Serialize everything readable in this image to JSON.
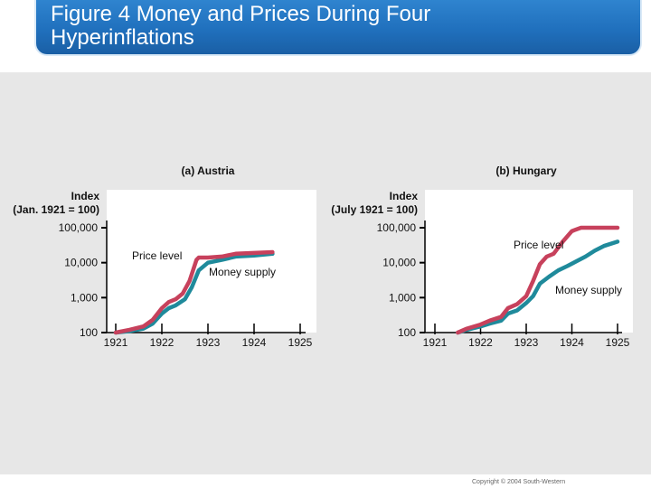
{
  "slide": {
    "title": "Figure 4 Money and Prices During Four Hyperinflations",
    "copyright": "Copyright © 2004 South-Western",
    "colors": {
      "price_level": "#c7415c",
      "money_supply": "#1f8a9b",
      "title_bg": "#2a7bc8"
    }
  },
  "chart_data": [
    {
      "type": "line",
      "panel_label": "(a) Austria",
      "ylabel": "Index\n(Jan. 1921 = 100)",
      "y_scale": "log",
      "ylim": [
        100,
        100000
      ],
      "y_ticks": [
        100,
        1000,
        10000,
        100000
      ],
      "y_tick_labels": [
        "100",
        "1,000",
        "10,000",
        "100,000"
      ],
      "x_ticks": [
        1921,
        1922,
        1923,
        1924,
        1925
      ],
      "x_tick_labels": [
        "1921",
        "1922",
        "1923",
        "1924",
        "1925"
      ],
      "xlim": [
        1921,
        1925
      ],
      "series": [
        {
          "name": "Price level",
          "color": "#c7415c",
          "x": [
            1921.0,
            1921.3,
            1921.6,
            1921.8,
            1922.0,
            1922.15,
            1922.3,
            1922.45,
            1922.6,
            1922.75,
            1922.8,
            1923.0,
            1923.3,
            1923.6,
            1924.0,
            1924.4
          ],
          "y": [
            100,
            120,
            150,
            230,
            500,
            750,
            900,
            1300,
            3000,
            12000,
            14000,
            14000,
            15000,
            18000,
            19000,
            20000
          ]
        },
        {
          "name": "Money supply",
          "color": "#1f8a9b",
          "x": [
            1921.0,
            1921.3,
            1921.6,
            1921.8,
            1922.0,
            1922.15,
            1922.3,
            1922.5,
            1922.65,
            1922.8,
            1923.0,
            1923.3,
            1923.6,
            1924.0,
            1924.4
          ],
          "y": [
            100,
            110,
            130,
            180,
            350,
            500,
            600,
            900,
            2000,
            6000,
            10000,
            12000,
            15000,
            16000,
            18000
          ]
        }
      ],
      "annotations": [
        {
          "text": "Price level",
          "series": "Price level"
        },
        {
          "text": "Money supply",
          "series": "Money supply"
        }
      ]
    },
    {
      "type": "line",
      "panel_label": "(b) Hungary",
      "ylabel": "Index\n(July 1921 = 100)",
      "y_scale": "log",
      "ylim": [
        100,
        100000
      ],
      "y_ticks": [
        100,
        1000,
        10000,
        100000
      ],
      "y_tick_labels": [
        "100",
        "1,000",
        "10,000",
        "100,000"
      ],
      "x_ticks": [
        1921,
        1922,
        1923,
        1924,
        1925
      ],
      "x_tick_labels": [
        "1921",
        "1922",
        "1923",
        "1924",
        "1925"
      ],
      "xlim": [
        1921,
        1925
      ],
      "series": [
        {
          "name": "Price level",
          "color": "#c7415c",
          "x": [
            1921.5,
            1921.7,
            1922.0,
            1922.2,
            1922.45,
            1922.6,
            1922.8,
            1923.0,
            1923.15,
            1923.3,
            1923.45,
            1923.6,
            1923.8,
            1924.0,
            1924.2,
            1924.4,
            1924.6,
            1925.0
          ],
          "y": [
            100,
            130,
            170,
            220,
            280,
            500,
            650,
            1100,
            3000,
            9000,
            15000,
            18000,
            40000,
            80000,
            100000,
            100000,
            100000,
            100000
          ]
        },
        {
          "name": "Money supply",
          "color": "#1f8a9b",
          "x": [
            1921.5,
            1921.7,
            1922.0,
            1922.2,
            1922.45,
            1922.6,
            1922.8,
            1923.0,
            1923.15,
            1923.3,
            1923.5,
            1923.7,
            1923.9,
            1924.1,
            1924.3,
            1924.5,
            1924.7,
            1925.0
          ],
          "y": [
            100,
            120,
            150,
            180,
            220,
            350,
            430,
            700,
            1100,
            2500,
            4000,
            6000,
            8000,
            11000,
            15000,
            22000,
            30000,
            40000
          ]
        }
      ],
      "annotations": [
        {
          "text": "Price level",
          "series": "Price level"
        },
        {
          "text": "Money supply",
          "series": "Money supply"
        }
      ]
    }
  ]
}
